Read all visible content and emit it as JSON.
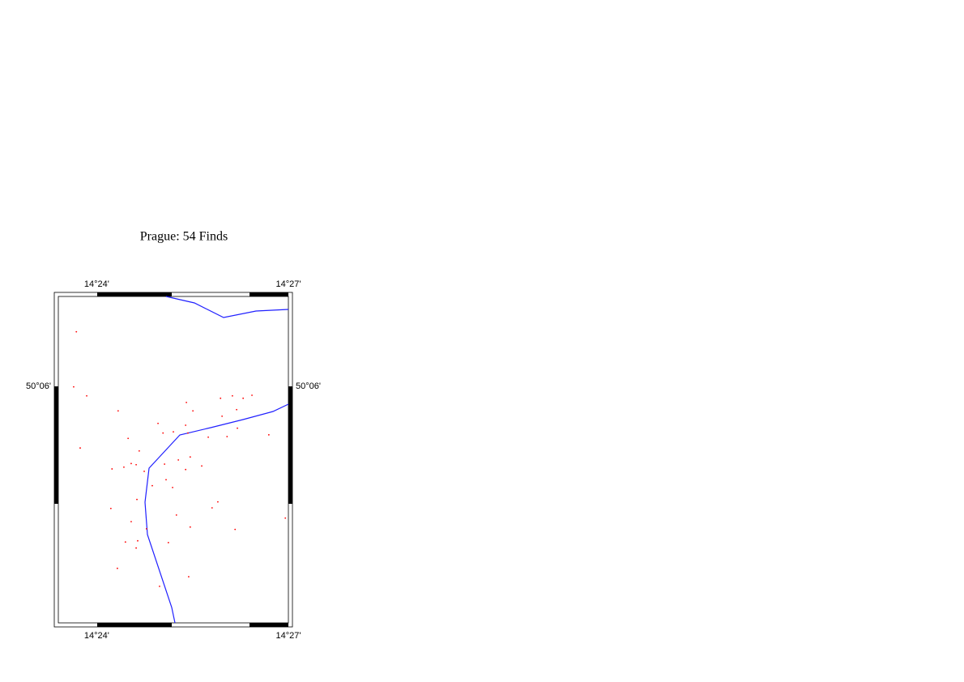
{
  "chart_data": {
    "type": "scatter",
    "title": "Prague: 54 Finds",
    "color": "#ff0000",
    "xlim": [
      14.39,
      14.45
    ],
    "ylim": [
      50.0605,
      50.115
    ],
    "xticks": [
      {
        "value": 14.4,
        "label": "14°24'"
      },
      {
        "value": 14.45,
        "label": "14°27'"
      }
    ],
    "yticks": [
      {
        "value": 50.1,
        "label": "50°06'"
      }
    ],
    "x": [
      14.3947,
      14.394,
      14.3974,
      14.4056,
      14.4234,
      14.4251,
      14.4323,
      14.4354,
      14.4382,
      14.4405,
      14.4365,
      14.4327,
      14.416,
      14.4232,
      14.4173,
      14.42,
      14.4238,
      14.4367,
      14.434,
      14.4291,
      14.4449,
      14.4082,
      14.3957,
      14.4111,
      14.4244,
      14.4213,
      14.4177,
      14.4274,
      14.4232,
      14.404,
      14.4071,
      14.409,
      14.4103,
      14.4124,
      14.4181,
      14.4145,
      14.4198,
      14.4105,
      14.4316,
      14.4301,
      14.4037,
      14.4208,
      14.4492,
      14.409,
      14.4244,
      14.4361,
      14.413,
      14.4075,
      14.4107,
      14.4187,
      14.4103,
      14.4054,
      14.424,
      14.4164
    ],
    "values": [
      50.1091,
      50.0999,
      50.0984,
      50.0959,
      50.0973,
      50.0959,
      50.098,
      50.0984,
      50.098,
      50.0985,
      50.0961,
      50.095,
      50.0938,
      50.0935,
      50.0922,
      50.0924,
      50.0922,
      50.093,
      50.0916,
      50.0915,
      50.0919,
      50.0913,
      50.0897,
      50.0892,
      50.0882,
      50.0877,
      50.087,
      50.0867,
      50.0861,
      50.0862,
      50.0865,
      50.0871,
      50.0869,
      50.0858,
      50.0844,
      50.0834,
      50.0831,
      50.0811,
      50.0807,
      50.0797,
      50.0796,
      50.0785,
      50.078,
      50.0774,
      50.0765,
      50.0761,
      50.0762,
      50.074,
      50.0742,
      50.0739,
      50.073,
      50.0696,
      50.0682,
      50.0666
    ]
  }
}
